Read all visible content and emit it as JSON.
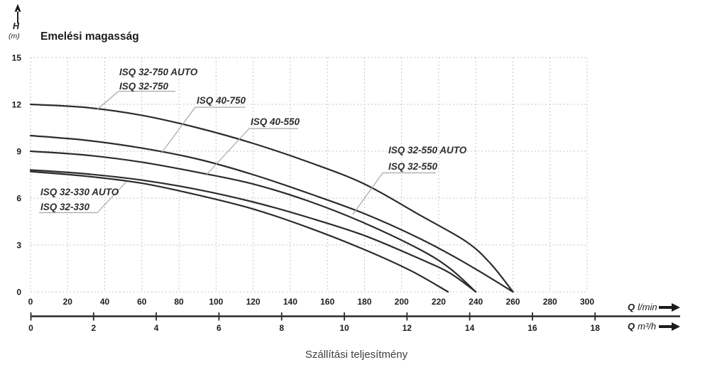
{
  "header": {
    "y_axis_symbol": "H",
    "y_axis_unit": "(m)",
    "title": "Emelési magasság"
  },
  "footer": {
    "x_title": "Szállítási teljesítmény"
  },
  "axis_labels": {
    "lmin_q": "Q",
    "lmin_unit": "l/min",
    "m3h_q": "Q",
    "m3h_unit": "m³/h"
  },
  "style": {
    "curve_color": "#2c2c2c",
    "grid_color": "#c5c5c5",
    "leader_color": "#a8a8a8",
    "axis_line_color": "#2b2b2b",
    "text_color": "#1d1d1d"
  },
  "chart_data": {
    "type": "line",
    "title": "Emelési magasság",
    "xlabel": "Szállítási teljesítmény",
    "ylabel": "H (m)",
    "grid": "dashed",
    "x_axis_lmin": {
      "unit": "l/min",
      "range": [
        0,
        300
      ],
      "ticks": [
        0,
        20,
        40,
        60,
        80,
        100,
        120,
        140,
        160,
        180,
        200,
        220,
        240,
        260,
        280,
        300
      ]
    },
    "x_axis_m3h": {
      "unit": "m³/h",
      "range": [
        0,
        18
      ],
      "ticks": [
        0,
        2,
        4,
        6,
        8,
        10,
        12,
        14,
        16,
        18
      ]
    },
    "y_axis": {
      "unit": "m",
      "range": [
        0,
        15
      ],
      "ticks": [
        0,
        3,
        6,
        9,
        12,
        15
      ]
    },
    "series": [
      {
        "name": "ISQ 32-750",
        "label_lines": [
          "ISQ 32-750 AUTO",
          "ISQ 32-750"
        ],
        "max_head_m": 12.0,
        "max_flow_lmin": 260,
        "points_lmin_m": [
          [
            0,
            12
          ],
          [
            30,
            11.8
          ],
          [
            60,
            11.3
          ],
          [
            90,
            10.5
          ],
          [
            120,
            9.5
          ],
          [
            150,
            8.3
          ],
          [
            180,
            6.9
          ],
          [
            210,
            4.9
          ],
          [
            235,
            3.2
          ],
          [
            248,
            1.8
          ],
          [
            260,
            0
          ]
        ]
      },
      {
        "name": "ISQ 40-750",
        "label_lines": [
          "ISQ 40-750"
        ],
        "max_head_m": 10.0,
        "max_flow_lmin": 260,
        "points_lmin_m": [
          [
            0,
            10
          ],
          [
            30,
            9.7
          ],
          [
            60,
            9.2
          ],
          [
            90,
            8.5
          ],
          [
            120,
            7.5
          ],
          [
            150,
            6.3
          ],
          [
            180,
            5.0
          ],
          [
            210,
            3.4
          ],
          [
            235,
            1.8
          ],
          [
            260,
            0
          ]
        ]
      },
      {
        "name": "ISQ 40-550",
        "label_lines": [
          "ISQ 40-550"
        ],
        "max_head_m": 9.0,
        "max_flow_lmin": 240,
        "points_lmin_m": [
          [
            0,
            9
          ],
          [
            30,
            8.75
          ],
          [
            60,
            8.3
          ],
          [
            90,
            7.65
          ],
          [
            120,
            6.9
          ],
          [
            150,
            5.8
          ],
          [
            180,
            4.4
          ],
          [
            210,
            2.7
          ],
          [
            226,
            1.5
          ],
          [
            240,
            0
          ]
        ]
      },
      {
        "name": "ISQ 32-550",
        "label_lines": [
          "ISQ 32-550 AUTO",
          "ISQ 32-550"
        ],
        "max_head_m": 7.8,
        "max_flow_lmin": 240,
        "points_lmin_m": [
          [
            0,
            7.8
          ],
          [
            30,
            7.55
          ],
          [
            60,
            7.15
          ],
          [
            90,
            6.55
          ],
          [
            120,
            5.75
          ],
          [
            150,
            4.75
          ],
          [
            180,
            3.6
          ],
          [
            210,
            2.1
          ],
          [
            226,
            1.2
          ],
          [
            240,
            0
          ]
        ]
      },
      {
        "name": "ISQ 32-330",
        "label_lines": [
          "ISQ 32-330 AUTO",
          "ISQ 32-330"
        ],
        "max_head_m": 7.7,
        "max_flow_lmin": 225,
        "points_lmin_m": [
          [
            0,
            7.7
          ],
          [
            30,
            7.4
          ],
          [
            60,
            6.95
          ],
          [
            90,
            6.2
          ],
          [
            120,
            5.3
          ],
          [
            150,
            4.1
          ],
          [
            180,
            2.7
          ],
          [
            205,
            1.35
          ],
          [
            225,
            0
          ]
        ]
      }
    ]
  }
}
